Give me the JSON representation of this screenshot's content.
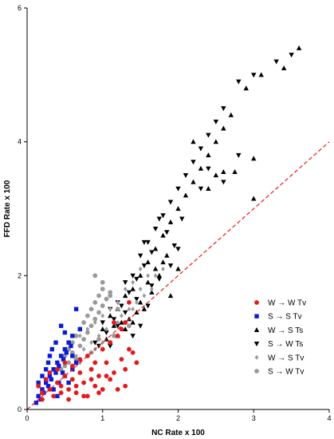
{
  "chart_data": {
    "type": "scatter",
    "xlabel": "NC Rate x 100",
    "ylabel": "FFD Rate x 100",
    "xlim": [
      0,
      4
    ],
    "ylim": [
      0,
      6
    ],
    "x_ticks": [
      "0",
      "1",
      "2",
      "3",
      "4"
    ],
    "y_ticks": [
      "0",
      "2",
      "4",
      "6"
    ],
    "grid": false,
    "legend_placement": "bottom-right",
    "reference_line": {
      "x": [
        0,
        4
      ],
      "y": [
        0,
        4
      ],
      "style": "dashed",
      "color": "#e31a1c"
    },
    "series": [
      {
        "name": "W → W Tv",
        "marker": "circle",
        "color": "#e31a1c",
        "points": [
          [
            0.15,
            0.35
          ],
          [
            0.2,
            0.25
          ],
          [
            0.25,
            0.45
          ],
          [
            0.3,
            0.3
          ],
          [
            0.35,
            0.2
          ],
          [
            0.4,
            0.4
          ],
          [
            0.45,
            0.35
          ],
          [
            0.5,
            0.5
          ],
          [
            0.55,
            0.3
          ],
          [
            0.6,
            0.45
          ],
          [
            0.65,
            0.25
          ],
          [
            0.7,
            0.55
          ],
          [
            0.75,
            0.4
          ],
          [
            0.8,
            0.2
          ],
          [
            0.85,
            0.6
          ],
          [
            0.9,
            0.35
          ],
          [
            0.95,
            0.5
          ],
          [
            1.0,
            0.3
          ],
          [
            1.05,
            0.7
          ],
          [
            1.1,
            0.45
          ],
          [
            1.15,
            0.55
          ],
          [
            1.2,
            0.3
          ],
          [
            1.25,
            0.75
          ],
          [
            1.3,
            0.6
          ],
          [
            1.35,
            0.9
          ],
          [
            1.4,
            0.85
          ],
          [
            0.3,
            0.55
          ],
          [
            0.4,
            0.6
          ],
          [
            0.5,
            0.7
          ],
          [
            0.6,
            0.65
          ],
          [
            0.7,
            0.75
          ],
          [
            0.8,
            0.8
          ],
          [
            0.9,
            0.7
          ],
          [
            1.0,
            0.9
          ],
          [
            1.1,
            1.0
          ],
          [
            1.2,
            1.1
          ],
          [
            1.3,
            1.3
          ],
          [
            1.35,
            1.6
          ],
          [
            1.25,
            1.2
          ],
          [
            1.15,
            1.3
          ],
          [
            0.55,
            0.15
          ],
          [
            0.65,
            0.35
          ],
          [
            0.75,
            0.2
          ],
          [
            0.85,
            0.45
          ],
          [
            0.95,
            0.25
          ],
          [
            1.05,
            0.5
          ],
          [
            1.45,
            0.7
          ],
          [
            1.3,
            0.35
          ],
          [
            0.2,
            0.15
          ],
          [
            0.45,
            0.25
          ]
        ]
      },
      {
        "name": "S → S Tv",
        "marker": "square",
        "color": "#0b1bd8",
        "points": [
          [
            0.12,
            0.1
          ],
          [
            0.15,
            0.2
          ],
          [
            0.18,
            0.15
          ],
          [
            0.2,
            0.3
          ],
          [
            0.22,
            0.25
          ],
          [
            0.25,
            0.4
          ],
          [
            0.28,
            0.35
          ],
          [
            0.3,
            0.5
          ],
          [
            0.32,
            0.45
          ],
          [
            0.35,
            0.6
          ],
          [
            0.38,
            0.55
          ],
          [
            0.4,
            0.7
          ],
          [
            0.42,
            0.65
          ],
          [
            0.45,
            0.8
          ],
          [
            0.48,
            0.75
          ],
          [
            0.5,
            0.9
          ],
          [
            0.52,
            0.85
          ],
          [
            0.55,
            1.0
          ],
          [
            0.58,
            0.95
          ],
          [
            0.6,
            1.1
          ],
          [
            0.45,
            1.25
          ],
          [
            0.65,
            1.5
          ],
          [
            0.3,
            0.8
          ],
          [
            0.35,
            0.3
          ],
          [
            0.4,
            0.2
          ],
          [
            0.25,
            0.6
          ],
          [
            0.5,
            0.5
          ],
          [
            0.55,
            0.4
          ],
          [
            0.6,
            0.6
          ],
          [
            0.7,
            1.2
          ],
          [
            0.28,
            0.7
          ],
          [
            0.33,
            0.9
          ],
          [
            0.38,
            1.0
          ],
          [
            0.42,
            0.4
          ],
          [
            0.47,
            0.55
          ],
          [
            0.2,
            0.5
          ],
          [
            0.15,
            0.4
          ],
          [
            0.5,
            1.15
          ],
          [
            0.6,
            0.8
          ],
          [
            0.65,
            0.7
          ]
        ]
      },
      {
        "name": "W → S Ts",
        "marker": "triangle-up",
        "color": "#000000",
        "points": [
          [
            1.0,
            1.2
          ],
          [
            1.1,
            1.4
          ],
          [
            1.2,
            1.5
          ],
          [
            1.3,
            1.7
          ],
          [
            1.4,
            1.8
          ],
          [
            1.5,
            2.0
          ],
          [
            1.6,
            2.2
          ],
          [
            1.7,
            2.4
          ],
          [
            1.8,
            2.6
          ],
          [
            1.9,
            2.8
          ],
          [
            2.0,
            3.0
          ],
          [
            2.1,
            3.2
          ],
          [
            2.2,
            3.4
          ],
          [
            2.3,
            3.6
          ],
          [
            2.4,
            3.8
          ],
          [
            2.5,
            4.0
          ],
          [
            2.6,
            4.2
          ],
          [
            2.7,
            4.4
          ],
          [
            2.9,
            4.8
          ],
          [
            3.1,
            5.0
          ],
          [
            3.4,
            5.1
          ],
          [
            3.6,
            5.4
          ],
          [
            3.0,
            3.75
          ],
          [
            3.0,
            3.15
          ],
          [
            2.6,
            3.55
          ],
          [
            2.2,
            4.0
          ],
          [
            1.5,
            1.6
          ],
          [
            1.6,
            1.9
          ],
          [
            1.7,
            2.1
          ],
          [
            1.8,
            2.2
          ],
          [
            1.85,
            2.3
          ],
          [
            1.4,
            1.3
          ],
          [
            1.3,
            1.2
          ],
          [
            1.2,
            1.1
          ],
          [
            1.1,
            1.0
          ],
          [
            1.9,
            1.7
          ],
          [
            2.0,
            2.1
          ],
          [
            1.75,
            2.0
          ],
          [
            1.65,
            1.75
          ],
          [
            1.55,
            1.5
          ],
          [
            1.45,
            1.45
          ],
          [
            1.35,
            1.35
          ],
          [
            1.25,
            1.3
          ],
          [
            1.15,
            1.25
          ],
          [
            1.05,
            1.05
          ],
          [
            2.4,
            3.3
          ],
          [
            2.5,
            3.5
          ],
          [
            2.75,
            3.55
          ]
        ]
      },
      {
        "name": "S → W Ts",
        "marker": "triangle-down",
        "color": "#000000",
        "points": [
          [
            0.9,
            1.0
          ],
          [
            1.0,
            1.3
          ],
          [
            1.1,
            1.5
          ],
          [
            1.2,
            1.6
          ],
          [
            1.3,
            1.9
          ],
          [
            1.4,
            2.0
          ],
          [
            1.5,
            2.3
          ],
          [
            1.6,
            2.5
          ],
          [
            1.7,
            2.7
          ],
          [
            1.8,
            2.9
          ],
          [
            1.9,
            3.1
          ],
          [
            2.0,
            3.3
          ],
          [
            2.1,
            3.5
          ],
          [
            2.2,
            3.7
          ],
          [
            2.3,
            3.9
          ],
          [
            2.4,
            4.1
          ],
          [
            2.5,
            4.3
          ],
          [
            2.6,
            4.5
          ],
          [
            2.8,
            4.9
          ],
          [
            3.0,
            5.0
          ],
          [
            3.3,
            5.2
          ],
          [
            3.5,
            5.3
          ],
          [
            1.85,
            2.65
          ],
          [
            1.75,
            2.85
          ],
          [
            1.65,
            2.35
          ],
          [
            1.55,
            2.15
          ],
          [
            1.45,
            1.95
          ],
          [
            1.35,
            1.75
          ],
          [
            1.25,
            1.55
          ],
          [
            1.15,
            1.35
          ],
          [
            1.05,
            1.15
          ],
          [
            0.95,
            0.95
          ],
          [
            1.95,
            2.45
          ],
          [
            2.05,
            2.85
          ],
          [
            1.45,
            1.65
          ],
          [
            1.65,
            1.85
          ],
          [
            1.75,
            1.95
          ],
          [
            2.6,
            3.4
          ],
          [
            2.8,
            3.8
          ],
          [
            2.3,
            3.3
          ],
          [
            2.4,
            3.6
          ],
          [
            1.3,
            1.45
          ],
          [
            1.55,
            2.5
          ],
          [
            1.6,
            1.55
          ],
          [
            1.1,
            0.95
          ],
          [
            1.2,
            1.25
          ],
          [
            1.4,
            1.1
          ],
          [
            1.5,
            1.25
          ],
          [
            1.9,
            2.15
          ],
          [
            2.0,
            2.4
          ]
        ]
      },
      {
        "name": "W → S Tv",
        "marker": "diamond",
        "color": "#9a9a9a",
        "points": [
          [
            0.6,
            1.0
          ],
          [
            0.7,
            1.1
          ],
          [
            0.8,
            1.2
          ],
          [
            0.9,
            1.3
          ],
          [
            1.0,
            1.4
          ],
          [
            1.1,
            1.5
          ],
          [
            1.2,
            1.6
          ],
          [
            1.3,
            1.8
          ],
          [
            1.4,
            1.9
          ],
          [
            1.5,
            2.1
          ],
          [
            1.6,
            2.0
          ],
          [
            1.7,
            2.0
          ],
          [
            1.8,
            2.1
          ],
          [
            0.75,
            0.9
          ],
          [
            0.85,
            1.0
          ],
          [
            0.95,
            1.1
          ],
          [
            1.05,
            1.2
          ],
          [
            1.15,
            1.3
          ],
          [
            1.25,
            1.4
          ],
          [
            1.35,
            1.5
          ],
          [
            1.45,
            1.6
          ],
          [
            1.55,
            1.7
          ],
          [
            1.65,
            1.8
          ],
          [
            0.65,
            0.8
          ],
          [
            0.7,
            0.7
          ],
          [
            0.9,
            0.9
          ],
          [
            1.0,
            1.0
          ],
          [
            1.2,
            1.3
          ],
          [
            1.4,
            1.5
          ],
          [
            1.5,
            1.8
          ]
        ]
      },
      {
        "name": "S → W Tv",
        "marker": "circle",
        "color": "#9a9a9a",
        "points": [
          [
            0.5,
            0.8
          ],
          [
            0.55,
            0.9
          ],
          [
            0.6,
            1.0
          ],
          [
            0.65,
            1.1
          ],
          [
            0.7,
            1.2
          ],
          [
            0.75,
            1.3
          ],
          [
            0.8,
            1.4
          ],
          [
            0.85,
            1.5
          ],
          [
            0.9,
            1.6
          ],
          [
            0.95,
            1.7
          ],
          [
            1.0,
            1.8
          ],
          [
            0.9,
            2.0
          ],
          [
            1.0,
            1.9
          ],
          [
            1.1,
            1.7
          ],
          [
            1.2,
            1.5
          ],
          [
            1.3,
            1.3
          ],
          [
            0.55,
            0.7
          ],
          [
            0.6,
            0.85
          ],
          [
            0.7,
            0.95
          ],
          [
            0.75,
            1.05
          ],
          [
            0.8,
            1.15
          ],
          [
            0.85,
            1.25
          ],
          [
            0.9,
            1.35
          ],
          [
            0.95,
            1.45
          ],
          [
            1.0,
            1.55
          ],
          [
            1.05,
            1.65
          ],
          [
            1.1,
            1.75
          ],
          [
            0.45,
            0.6
          ],
          [
            0.5,
            0.65
          ],
          [
            0.65,
            0.75
          ],
          [
            0.85,
            0.85
          ],
          [
            1.15,
            1.1
          ],
          [
            1.25,
            1.2
          ],
          [
            1.35,
            1.25
          ],
          [
            0.95,
            1.05
          ]
        ]
      }
    ]
  }
}
